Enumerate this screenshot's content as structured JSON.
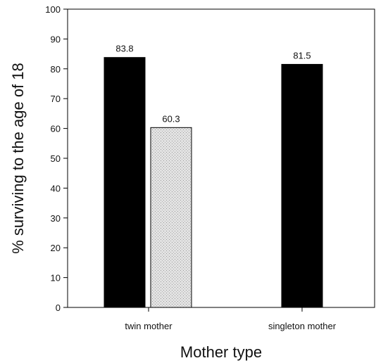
{
  "chart_data": {
    "type": "bar",
    "xlabel": "Mother type",
    "ylabel": "% surviving to the age of 18",
    "ylim": [
      0,
      100
    ],
    "yticks": [
      0,
      10,
      20,
      30,
      40,
      50,
      60,
      70,
      80,
      90,
      100
    ],
    "grid": false,
    "legend": "none",
    "categories": [
      "twin mother",
      "singleton mother"
    ],
    "bars": [
      {
        "category": "twin mother",
        "value": 83.8,
        "label": "83.8",
        "fill": "#000000"
      },
      {
        "category": "twin mother",
        "value": 60.3,
        "label": "60.3",
        "fill": "#d4d4d4"
      },
      {
        "category": "singleton mother",
        "value": 81.5,
        "label": "81.5",
        "fill": "#000000"
      }
    ]
  }
}
